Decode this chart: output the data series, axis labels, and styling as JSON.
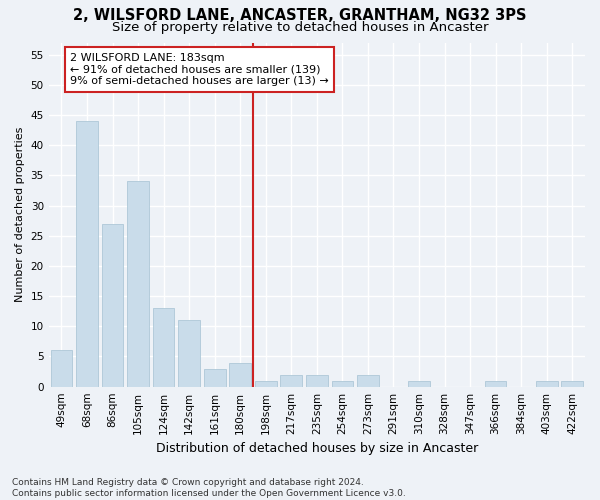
{
  "title": "2, WILSFORD LANE, ANCASTER, GRANTHAM, NG32 3PS",
  "subtitle": "Size of property relative to detached houses in Ancaster",
  "xlabel": "Distribution of detached houses by size in Ancaster",
  "ylabel": "Number of detached properties",
  "categories": [
    "49sqm",
    "68sqm",
    "86sqm",
    "105sqm",
    "124sqm",
    "142sqm",
    "161sqm",
    "180sqm",
    "198sqm",
    "217sqm",
    "235sqm",
    "254sqm",
    "273sqm",
    "291sqm",
    "310sqm",
    "328sqm",
    "347sqm",
    "366sqm",
    "384sqm",
    "403sqm",
    "422sqm"
  ],
  "values": [
    6,
    44,
    27,
    34,
    13,
    11,
    3,
    4,
    1,
    2,
    2,
    1,
    2,
    0,
    1,
    0,
    0,
    1,
    0,
    1,
    1
  ],
  "bar_color": "#c9dcea",
  "bar_edge_color": "#aec8d8",
  "reference_line_label": "2 WILSFORD LANE: 183sqm",
  "annotation_line1": "← 91% of detached houses are smaller (139)",
  "annotation_line2": "9% of semi-detached houses are larger (13) →",
  "annotation_box_facecolor": "#ffffff",
  "annotation_box_edgecolor": "#cc2222",
  "vline_color": "#cc2222",
  "vline_x_index": 7.5,
  "ylim": [
    0,
    57
  ],
  "yticks": [
    0,
    5,
    10,
    15,
    20,
    25,
    30,
    35,
    40,
    45,
    50,
    55
  ],
  "footer1": "Contains HM Land Registry data © Crown copyright and database right 2024.",
  "footer2": "Contains public sector information licensed under the Open Government Licence v3.0.",
  "bg_color": "#eef2f7",
  "grid_color": "#ffffff",
  "title_fontsize": 10.5,
  "subtitle_fontsize": 9.5,
  "xlabel_fontsize": 9,
  "ylabel_fontsize": 8,
  "tick_fontsize": 7.5,
  "annotation_fontsize": 8,
  "footer_fontsize": 6.5
}
